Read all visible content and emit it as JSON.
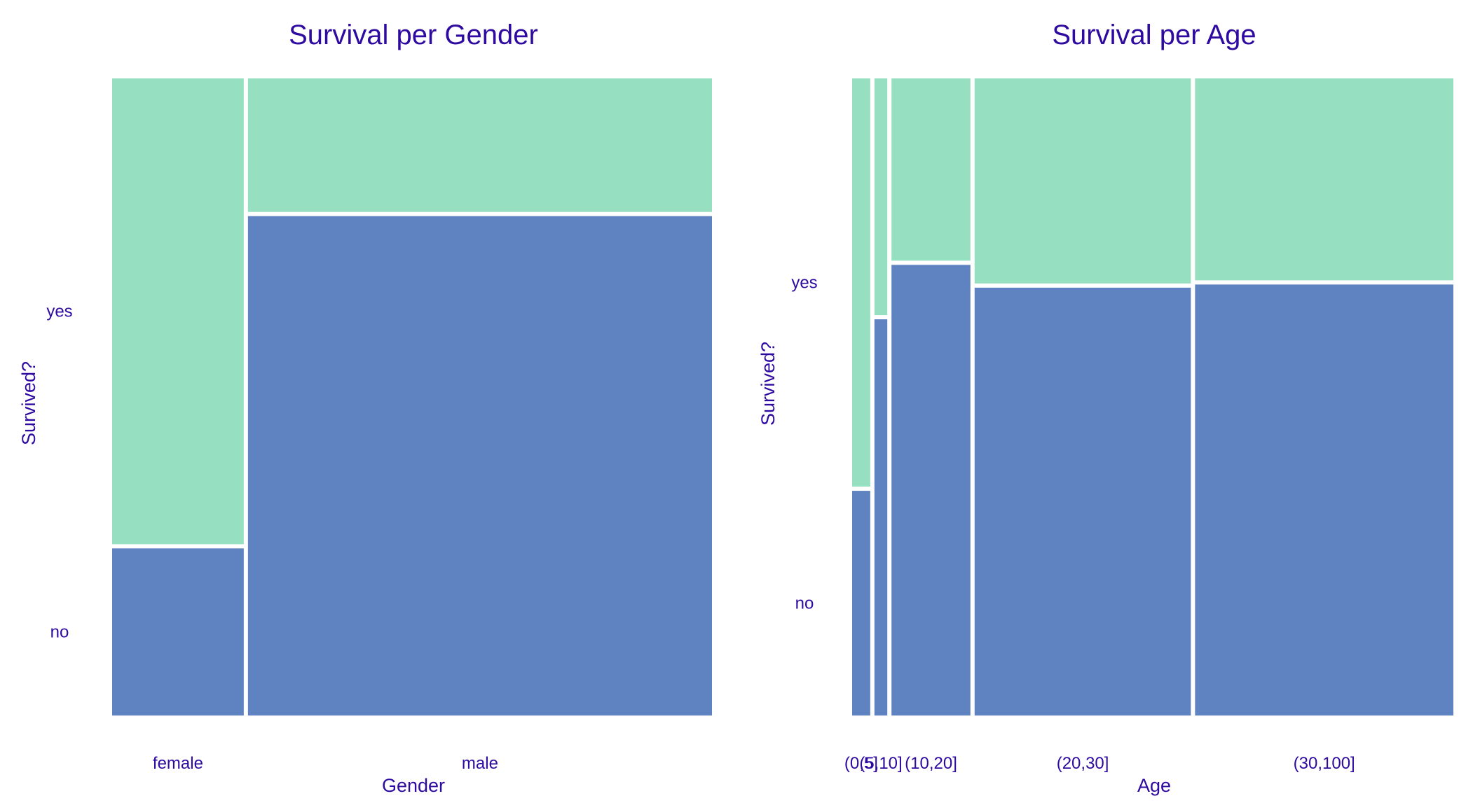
{
  "colors": {
    "no": "#5f82c1",
    "yes": "#96dfc0",
    "text": "#2e0aa0",
    "background": "#ffffff"
  },
  "chart_data": [
    {
      "type": "mosaic",
      "title": "Survival per Gender",
      "xlabel": "Gender",
      "ylabel": "Survived?",
      "categories": [
        "female",
        "male"
      ],
      "category_share": [
        0.221,
        0.779
      ],
      "series": [
        {
          "name": "no",
          "proportions": [
            0.264,
            0.789
          ]
        },
        {
          "name": "yes",
          "proportions": [
            0.736,
            0.211
          ]
        }
      ],
      "ytick_labels": [
        "no",
        "yes"
      ],
      "legend": false,
      "grid": false
    },
    {
      "type": "mosaic",
      "title": "Survival per Age",
      "xlabel": "Age",
      "ylabel": "Survived?",
      "categories": [
        "(0,5]",
        "(5,10]",
        "(10,20]",
        "(20,30]",
        "(30,100]"
      ],
      "category_share": [
        0.031,
        0.022,
        0.135,
        0.37,
        0.442
      ],
      "series": [
        {
          "name": "no",
          "proportions": [
            0.355,
            0.626,
            0.712,
            0.676,
            0.681
          ]
        },
        {
          "name": "yes",
          "proportions": [
            0.645,
            0.374,
            0.288,
            0.324,
            0.319
          ]
        }
      ],
      "ytick_labels": [
        "no",
        "yes"
      ],
      "legend": false,
      "grid": false
    }
  ]
}
